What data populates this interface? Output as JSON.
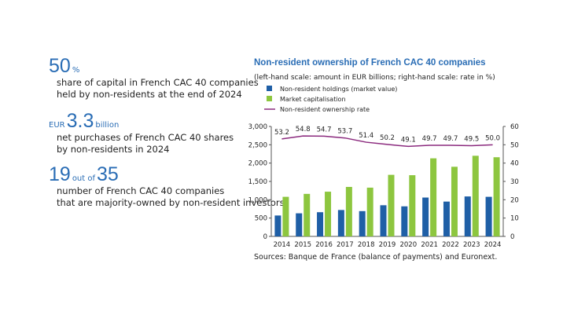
{
  "key_figures": [
    {
      "parts": [
        {
          "text": "50",
          "big": true
        },
        {
          "text": "%",
          "big": false
        }
      ],
      "lines": [
        "share of capital in French CAC 40 companies",
        "held by non-residents at the end of 2024"
      ]
    },
    {
      "parts": [
        {
          "text": "EUR",
          "big": false
        },
        {
          "text": "3.3",
          "big": true
        },
        {
          "text": "billion",
          "big": false
        }
      ],
      "lines": [
        "net purchases of French CAC 40 shares",
        "by non-residents in 2024"
      ]
    },
    {
      "parts": [
        {
          "text": "19",
          "big": true
        },
        {
          "text": "out of",
          "big": false
        },
        {
          "text": "35",
          "big": true
        }
      ],
      "lines": [
        "number of French CAC 40 companies",
        "that are majority-owned by non-resident investors"
      ]
    }
  ],
  "chart_data": {
    "type": "bar",
    "title": "Non-resident ownership of French CAC 40 companies",
    "subtitle": "(left-hand scale: amount in EUR billions; right-hand scale: rate in %)",
    "categories": [
      "2014",
      "2015",
      "2016",
      "2017",
      "2018",
      "2019",
      "2020",
      "2021",
      "2022",
      "2023",
      "2024"
    ],
    "series": [
      {
        "name": "Non-resident holdings (market value)",
        "color": "#1f5fa6",
        "values": [
          570,
          630,
          660,
          720,
          690,
          850,
          820,
          1060,
          950,
          1090,
          1080
        ]
      },
      {
        "name": "Market capitalisation",
        "color": "#8dc63f",
        "values": [
          1080,
          1160,
          1220,
          1350,
          1330,
          1680,
          1670,
          2130,
          1900,
          2200,
          2160
        ]
      },
      {
        "name": "Non-resident ownership rate",
        "color": "#8b2a7e",
        "type": "line",
        "axis": "y2",
        "values": [
          53.2,
          54.8,
          54.7,
          53.7,
          51.4,
          50.2,
          49.1,
          49.7,
          49.7,
          49.5,
          50.0
        ],
        "value_labels": [
          "53.2",
          "54.8",
          "54.7",
          "53.7",
          "51.4",
          "50.2",
          "49.1",
          "49.7",
          "49.7",
          "49.5",
          "50.0"
        ]
      }
    ],
    "ylim": [
      0,
      3000
    ],
    "yticks": [
      0,
      500,
      {
        "value": 1000,
        "label": "1,000"
      },
      {
        "value": 1500,
        "label": "1,500"
      },
      {
        "value": 2000,
        "label": "2,000"
      },
      {
        "value": 2500,
        "label": "2,500"
      },
      {
        "value": 3000,
        "label": "3,000"
      }
    ],
    "y2lim": [
      0,
      60
    ],
    "y2ticks": [
      0,
      10,
      20,
      30,
      40,
      50,
      60
    ],
    "grid": false,
    "source": "Sources: Banque de France (balance of payments) and Euronext."
  }
}
